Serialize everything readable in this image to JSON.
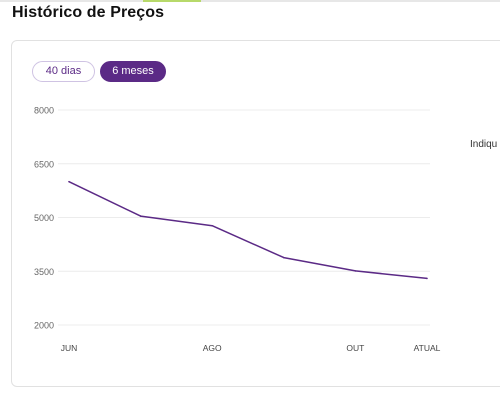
{
  "page": {
    "title": "Histórico de Preços"
  },
  "filters": {
    "options": [
      "40 dias",
      "6 meses"
    ],
    "selected": "6 meses"
  },
  "side_text": "Indiqu",
  "colors": {
    "line": "#5b2a86",
    "active_pill": "#5b2a86",
    "accent_bar": "#b7d96a"
  },
  "chart_data": {
    "type": "line",
    "x_tick_labels": [
      "JUN",
      "AGO",
      "OUT",
      "ATUAL"
    ],
    "y_ticks": [
      2000,
      3500,
      5000,
      6500,
      8000
    ],
    "ylim": [
      2000,
      8000
    ],
    "grid": true,
    "series": [
      {
        "points": [
          {
            "x": "JUN",
            "y": 6000
          },
          {
            "x": "JUL",
            "y": 5040
          },
          {
            "x": "AGO",
            "y": 4770
          },
          {
            "x": "SET",
            "y": 3880
          },
          {
            "x": "OUT",
            "y": 3510
          },
          {
            "x": "ATUAL",
            "y": 3300
          }
        ]
      }
    ]
  }
}
